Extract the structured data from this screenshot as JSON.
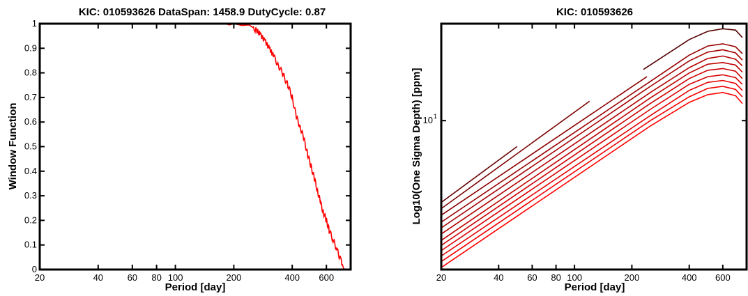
{
  "chart_data": [
    {
      "type": "line",
      "title": "KIC: 010593626 DataSpan: 1458.9 DutyCycle: 0.87",
      "xlabel": "Period [day]",
      "ylabel": "Window Function",
      "xscale": "log",
      "xlim": [
        20,
        800
      ],
      "ylim": [
        0,
        1
      ],
      "x_ticks": [
        20,
        40,
        60,
        80,
        100,
        200,
        400,
        600
      ],
      "x_tick_labels": [
        "20",
        "40",
        "60",
        "80",
        "100",
        "200",
        "400",
        "600"
      ],
      "y_ticks": [
        0,
        0.1,
        0.2,
        0.3,
        0.4,
        0.5,
        0.6,
        0.7,
        0.8,
        0.9,
        1
      ],
      "y_tick_labels": [
        "0",
        "0.1",
        "0.2",
        "0.3",
        "0.4",
        "0.5",
        "0.6",
        "0.7",
        "0.8",
        "0.9",
        "1"
      ],
      "grid": false,
      "series_color": "#ff0000",
      "series": [
        {
          "points": [
            [
              20,
              1.0
            ],
            [
              100,
              1.0
            ],
            [
              180,
              1.0
            ],
            [
              190,
              0.995
            ],
            [
              200,
              1.0
            ],
            [
              220,
              0.993
            ],
            [
              240,
              0.995
            ],
            [
              260,
              0.975
            ],
            [
              275,
              0.955
            ],
            [
              290,
              0.93
            ],
            [
              305,
              0.9
            ],
            [
              320,
              0.87
            ],
            [
              340,
              0.83
            ],
            [
              360,
              0.79
            ],
            [
              380,
              0.75
            ],
            [
              400,
              0.7
            ],
            [
              420,
              0.62
            ],
            [
              440,
              0.58
            ],
            [
              460,
              0.53
            ],
            [
              480,
              0.47
            ],
            [
              500,
              0.42
            ],
            [
              520,
              0.37
            ],
            [
              540,
              0.32
            ],
            [
              560,
              0.27
            ],
            [
              580,
              0.23
            ],
            [
              600,
              0.2
            ],
            [
              620,
              0.16
            ],
            [
              650,
              0.12
            ],
            [
              680,
              0.08
            ],
            [
              710,
              0.04
            ],
            [
              740,
              0.0
            ]
          ]
        }
      ]
    },
    {
      "type": "line",
      "title": "KIC: 010593626",
      "xlabel": "Period [day]",
      "ylabel": "Log10(One Sigma Depth) [ppm]",
      "xscale": "log",
      "yscale": "log",
      "xlim": [
        20,
        800
      ],
      "ylim": [
        3.2,
        21
      ],
      "x_ticks": [
        20,
        40,
        60,
        80,
        100,
        200,
        400,
        600
      ],
      "x_tick_labels": [
        "20",
        "40",
        "60",
        "80",
        "100",
        "200",
        "400",
        "600"
      ],
      "y_tick_labels": [
        {
          "base": "10",
          "exp": "1",
          "value": 10
        }
      ],
      "grid": false,
      "series": [
        {
          "color": "#ff0000",
          "points": [
            [
              20,
              3.25
            ],
            [
              250,
              9.6
            ],
            [
              400,
              11.5
            ],
            [
              500,
              12.2
            ],
            [
              600,
              12.4
            ],
            [
              700,
              12.1
            ],
            [
              760,
              11.4
            ]
          ]
        },
        {
          "color": "#f20000",
          "points": [
            [
              20,
              3.4
            ],
            [
              250,
              10.0
            ],
            [
              400,
              12.0
            ],
            [
              500,
              12.8
            ],
            [
              600,
              13.0
            ],
            [
              700,
              12.7
            ],
            [
              760,
              12.0
            ]
          ]
        },
        {
          "color": "#e60000",
          "points": [
            [
              20,
              3.55
            ],
            [
              250,
              10.4
            ],
            [
              400,
              12.6
            ],
            [
              500,
              13.4
            ],
            [
              600,
              13.6
            ],
            [
              700,
              13.3
            ],
            [
              760,
              12.6
            ]
          ]
        },
        {
          "color": "#d90000",
          "points": [
            [
              20,
              3.7
            ],
            [
              250,
              10.9
            ],
            [
              400,
              13.2
            ],
            [
              500,
              14.0
            ],
            [
              600,
              14.2
            ],
            [
              700,
              13.9
            ],
            [
              760,
              13.2
            ]
          ]
        },
        {
          "color": "#cc0000",
          "points": [
            [
              20,
              3.85
            ],
            [
              250,
              11.4
            ],
            [
              400,
              13.8
            ],
            [
              500,
              14.7
            ],
            [
              600,
              14.9
            ],
            [
              700,
              14.6
            ],
            [
              760,
              13.8
            ]
          ]
        },
        {
          "color": "#bf0000",
          "points": [
            [
              20,
              4.0
            ],
            [
              250,
              11.9
            ],
            [
              400,
              14.4
            ],
            [
              500,
              15.4
            ],
            [
              600,
              15.6
            ],
            [
              700,
              15.3
            ],
            [
              760,
              14.5
            ]
          ]
        },
        {
          "color": "#b30000",
          "points": [
            [
              20,
              4.2
            ],
            [
              250,
              12.4
            ],
            [
              400,
              15.0
            ],
            [
              500,
              16.1
            ],
            [
              600,
              16.4
            ],
            [
              700,
              16.0
            ],
            [
              760,
              15.2
            ]
          ]
        },
        {
          "color": "#a60000",
          "points": [
            [
              20,
              4.4
            ],
            [
              250,
              13.0
            ],
            [
              400,
              15.8
            ],
            [
              500,
              16.9
            ],
            [
              600,
              17.2
            ],
            [
              700,
              16.8
            ],
            [
              760,
              15.9
            ]
          ]
        },
        {
          "color": "#990000",
          "points": [
            [
              20,
              4.6
            ],
            [
              250,
              13.5
            ],
            [
              400,
              16.5
            ],
            [
              500,
              17.7
            ],
            [
              600,
              18.0
            ],
            [
              700,
              17.6
            ],
            [
              760,
              16.7
            ]
          ]
        },
        {
          "color": "#8c0000",
          "points": [
            [
              20,
              4.85
            ],
            [
              240,
              14.0
            ]
          ]
        },
        {
          "color": "#7a0000",
          "points": [
            [
              20,
              5.1
            ],
            [
              120,
              11.6
            ]
          ]
        },
        {
          "color": "#660000",
          "points": [
            [
              20,
              5.35
            ],
            [
              50,
              8.2
            ]
          ]
        },
        {
          "color": "#550000",
          "points": [
            [
              230,
              14.8
            ],
            [
              400,
              18.6
            ],
            [
              500,
              19.8
            ],
            [
              600,
              20.2
            ],
            [
              700,
              20.0
            ],
            [
              760,
              18.9
            ]
          ]
        }
      ]
    }
  ]
}
